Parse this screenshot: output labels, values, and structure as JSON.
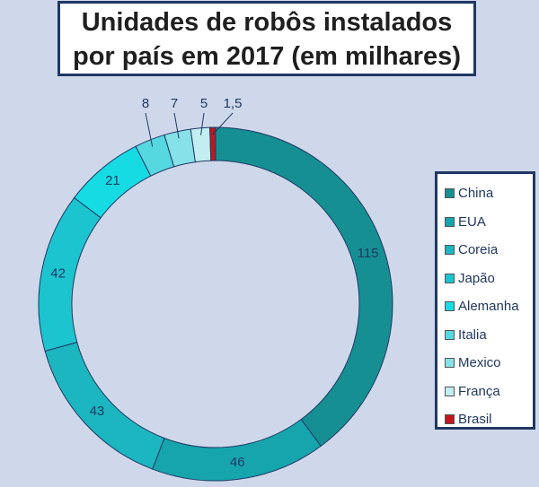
{
  "chart_data": {
    "type": "pie",
    "subtype": "donut",
    "title": [
      "Unidades de robôs instalados",
      "por país em 2017 (em milhares)"
    ],
    "categories": [
      "China",
      "EUA",
      "Coreia",
      "Japão",
      "Alemanha",
      "Italia",
      "Mexico",
      "França",
      "Brasil"
    ],
    "values": [
      115,
      46,
      43,
      42,
      21,
      8,
      7,
      5,
      1.5
    ],
    "data_labels": [
      "115",
      "46",
      "43",
      "42",
      "21",
      "8",
      "7",
      "5",
      "1,5"
    ],
    "colors": [
      "#168f93",
      "#16a5ad",
      "#1bb6bf",
      "#1cc4cf",
      "#16dbe3",
      "#55d8e0",
      "#86e2e8",
      "#c2eef2",
      "#c0161c"
    ],
    "legend_position": "right"
  }
}
